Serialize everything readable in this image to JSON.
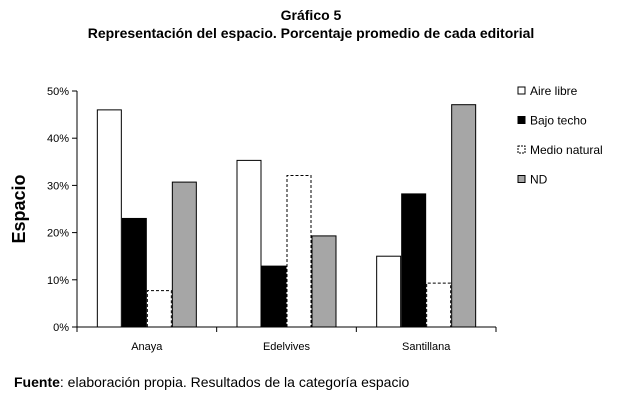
{
  "chart_data": {
    "type": "bar",
    "title": "Gráfico 5",
    "subtitle": "Representación del espacio. Porcentaje promedio de cada editorial",
    "ylabel": "Espacio",
    "xlabel": "",
    "categories": [
      "Anaya",
      "Edelvives",
      "Santillana"
    ],
    "ylim": [
      0,
      50
    ],
    "yticks": [
      "0%",
      "10%",
      "20%",
      "30%",
      "40%",
      "50%"
    ],
    "grid": false,
    "legend_position": "right",
    "series": [
      {
        "name": "Aire libre",
        "values": [
          46,
          35.3,
          15
        ],
        "fill": "#ffffff",
        "stroke": "#000000",
        "dash": false
      },
      {
        "name": "Bajo techo",
        "values": [
          23,
          12.9,
          28.2
        ],
        "fill": "#000000",
        "stroke": "#000000",
        "dash": false
      },
      {
        "name": "Medio natural",
        "values": [
          7.7,
          32.1,
          9.3
        ],
        "fill": "#ffffff",
        "stroke": "#000000",
        "dash": true
      },
      {
        "name": "ND",
        "values": [
          30.7,
          19.3,
          47.1
        ],
        "fill": "#a6a6a6",
        "stroke": "#000000",
        "dash": false
      }
    ]
  },
  "footnote": {
    "label": "Fuente",
    "text": ": elaboración propia. Resultados de la categoría espacio"
  }
}
